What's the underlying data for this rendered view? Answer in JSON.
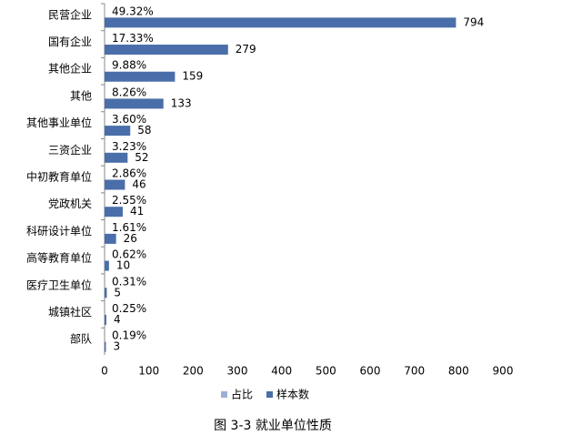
{
  "chart_data": {
    "type": "bar",
    "orientation": "horizontal",
    "title": "图 3-3   就业单位性质",
    "categories": [
      "民营企业",
      "国有企业",
      "其他企业",
      "其他",
      "其他事业单位",
      "三资企业",
      "中初教育单位",
      "党政机关",
      "科研设计单位",
      "高等教育单位",
      "医疗卫生单位",
      "城镇社区",
      "部队"
    ],
    "series": [
      {
        "name": "占比",
        "color": "#9bb0d3",
        "values": [
          0.4932,
          0.1733,
          0.0988,
          0.0826,
          0.036,
          0.0323,
          0.0286,
          0.0255,
          0.0161,
          0.0062,
          0.0031,
          0.0025,
          0.0019
        ],
        "value_labels": [
          "49.32%",
          "17.33%",
          "9.88%",
          "8.26%",
          "3.60%",
          "3.23%",
          "2.86%",
          "2.55%",
          "1.61%",
          "0.62%",
          "0.31%",
          "0.25%",
          "0.19%"
        ]
      },
      {
        "name": "样本数",
        "color": "#4a6ea9",
        "values": [
          794,
          279,
          159,
          133,
          58,
          52,
          46,
          41,
          26,
          10,
          5,
          4,
          3
        ]
      }
    ],
    "xlim": [
      0,
      900
    ],
    "xticks": [
      0,
      100,
      200,
      300,
      400,
      500,
      600,
      700,
      800,
      900
    ],
    "grid": false,
    "legend": "bottom"
  }
}
